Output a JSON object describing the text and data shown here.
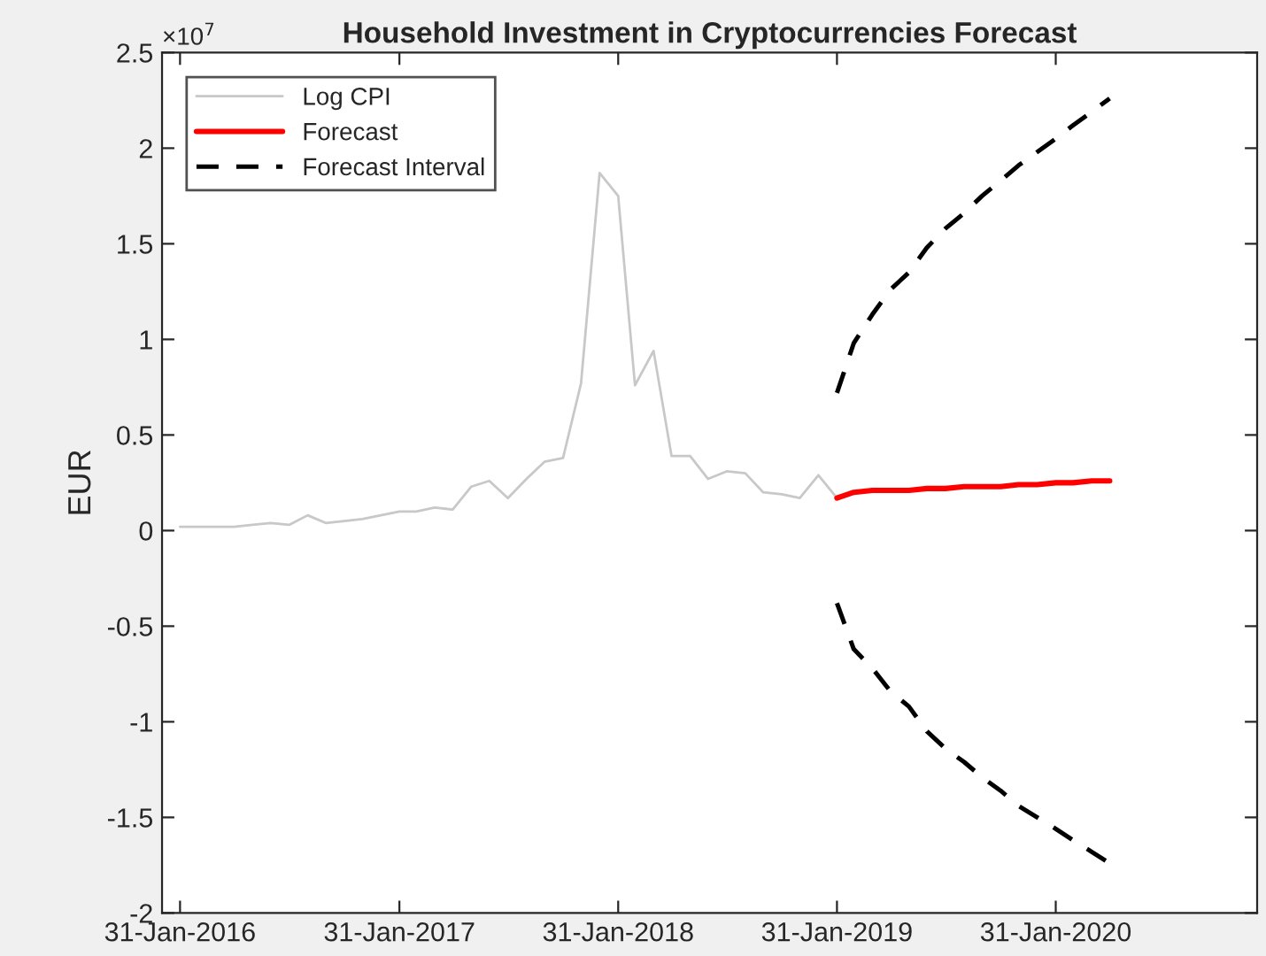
{
  "chart_data": {
    "type": "line",
    "title": "Household Investment in Cryptocurrencies Forecast",
    "ylabel": "EUR",
    "annotations": [
      "×10$^{7}$"
    ],
    "series": [
      {
        "name": "Log CPI",
        "color": "#c8c8c8",
        "line_style": "solid",
        "x": [
          "2016-01-31",
          "2016-02-29",
          "2016-03-31",
          "2016-04-30",
          "2016-05-31",
          "2016-06-30",
          "2016-07-31",
          "2016-08-31",
          "2016-09-30",
          "2016-10-31",
          "2016-11-30",
          "2016-12-31",
          "2017-01-31",
          "2017-02-28",
          "2017-03-31",
          "2017-04-30",
          "2017-05-31",
          "2017-06-30",
          "2017-07-31",
          "2017-08-31",
          "2017-09-30",
          "2017-10-31",
          "2017-11-30",
          "2017-12-31",
          "2018-01-31",
          "2018-02-28",
          "2018-03-31",
          "2018-04-30",
          "2018-05-31",
          "2018-06-30",
          "2018-07-31",
          "2018-08-31",
          "2018-09-30",
          "2018-10-31",
          "2018-11-30",
          "2018-12-31",
          "2019-01-31"
        ],
        "values": [
          0.02,
          0.02,
          0.02,
          0.02,
          0.03,
          0.04,
          0.03,
          0.08,
          0.04,
          0.05,
          0.06,
          0.08,
          0.1,
          0.1,
          0.12,
          0.11,
          0.23,
          0.26,
          0.17,
          0.27,
          0.36,
          0.38,
          0.77,
          1.87,
          1.75,
          0.76,
          0.94,
          0.39,
          0.39,
          0.27,
          0.31,
          0.3,
          0.2,
          0.19,
          0.17,
          0.29,
          0.17
        ]
      },
      {
        "name": "Forecast",
        "color": "#ff0000",
        "line_style": "solid",
        "x": [
          "2019-01-31",
          "2019-02-28",
          "2019-03-31",
          "2019-04-30",
          "2019-05-31",
          "2019-06-30",
          "2019-07-31",
          "2019-08-31",
          "2019-09-30",
          "2019-10-31",
          "2019-11-30",
          "2019-12-31",
          "2020-01-31",
          "2020-02-29",
          "2020-03-31",
          "2020-04-30"
        ],
        "values": [
          0.17,
          0.2,
          0.21,
          0.21,
          0.21,
          0.22,
          0.22,
          0.23,
          0.23,
          0.23,
          0.24,
          0.24,
          0.25,
          0.25,
          0.26,
          0.26
        ]
      },
      {
        "name": "Forecast Interval",
        "color": "#000000",
        "line_style": "dashed",
        "x": [
          "2019-01-31",
          "2019-02-28",
          "2019-03-31",
          "2019-04-30",
          "2019-05-31",
          "2019-06-30",
          "2019-07-31",
          "2019-08-31",
          "2019-09-30",
          "2019-10-31",
          "2019-11-30",
          "2019-12-31",
          "2020-01-31",
          "2020-02-29",
          "2020-03-31",
          "2020-04-30"
        ],
        "values": [
          0.72,
          0.98,
          1.13,
          1.26,
          1.35,
          1.48,
          1.58,
          1.66,
          1.75,
          1.83,
          1.91,
          1.98,
          2.05,
          2.12,
          2.19,
          2.26
        ]
      },
      {
        "color": "#000000",
        "line_style": "dashed",
        "x": [
          "2019-01-31",
          "2019-02-28",
          "2019-03-31",
          "2019-04-30",
          "2019-05-31",
          "2019-06-30",
          "2019-07-31",
          "2019-08-31",
          "2019-09-30",
          "2019-10-31",
          "2019-11-30",
          "2019-12-31",
          "2020-01-31",
          "2020-02-29",
          "2020-03-31",
          "2020-04-30"
        ],
        "values": [
          -0.38,
          -0.62,
          -0.72,
          -0.84,
          -0.92,
          -1.05,
          -1.14,
          -1.21,
          -1.29,
          -1.36,
          -1.44,
          -1.5,
          -1.56,
          -1.62,
          -1.68,
          -1.74
        ]
      }
    ],
    "xlim": [
      "2016-01-01",
      "2021-01-01"
    ],
    "xticks": [
      {
        "value": "2016-01-31",
        "label": "31-Jan-2016"
      },
      {
        "value": "2017-01-31",
        "label": "31-Jan-2017"
      },
      {
        "value": "2018-01-31",
        "label": "31-Jan-2018"
      },
      {
        "value": "2019-01-31",
        "label": "31-Jan-2019"
      },
      {
        "value": "2020-01-31",
        "label": "31-Jan-2020"
      }
    ],
    "ylim": [
      -2,
      2.5
    ],
    "yticks": [
      -2,
      -1.5,
      -1,
      -0.5,
      0,
      0.5,
      1,
      1.5,
      2,
      2.5
    ],
    "grid": false,
    "legend": "top left",
    "marker": "none"
  }
}
